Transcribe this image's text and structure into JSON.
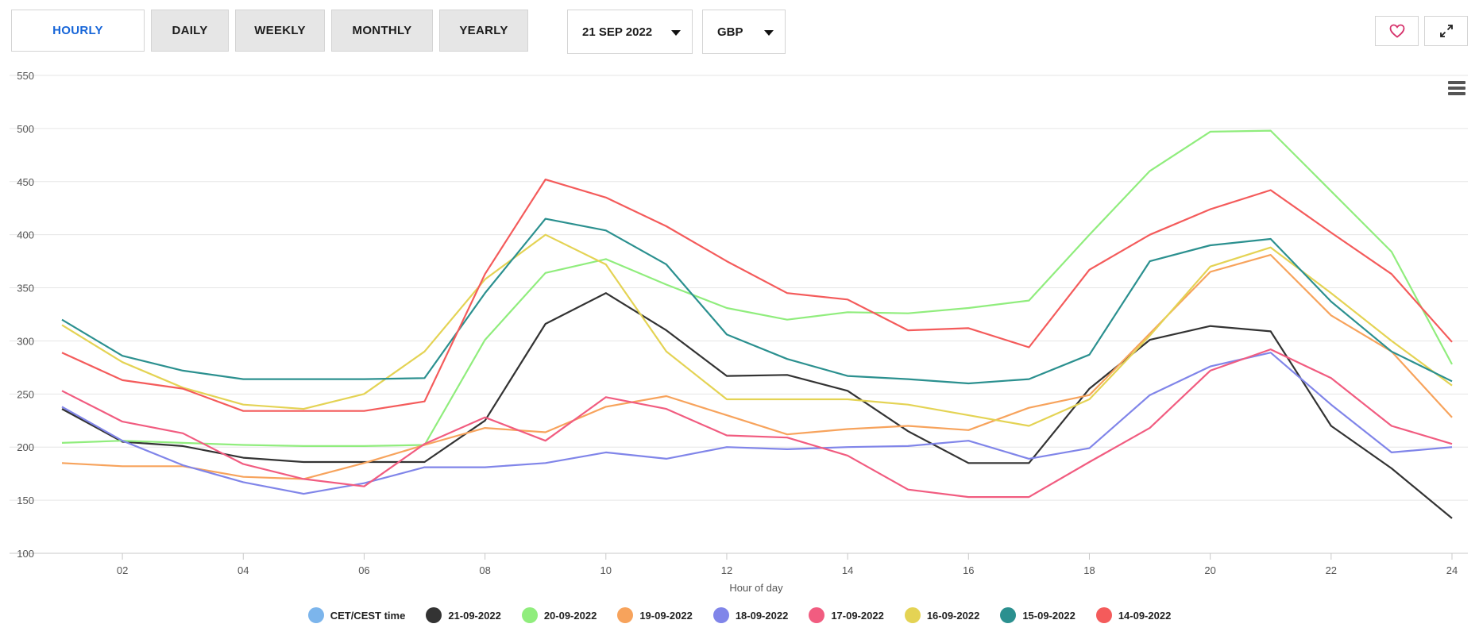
{
  "tabs": [
    {
      "label": "HOURLY",
      "active": true
    },
    {
      "label": "DAILY",
      "active": false
    },
    {
      "label": "WEEKLY",
      "active": false
    },
    {
      "label": "MONTHLY",
      "active": false
    },
    {
      "label": "YEARLY",
      "active": false
    }
  ],
  "date_select": {
    "value": "21 SEP 2022"
  },
  "currency_select": {
    "value": "GBP"
  },
  "icons": {
    "favorite": "heart-icon",
    "expand": "expand-icon",
    "menu": "menu-icon"
  },
  "chart_data": {
    "type": "line",
    "title": "",
    "xlabel": "Hour of day",
    "ylabel": "",
    "xlim": [
      1,
      24
    ],
    "ylim": [
      100,
      550
    ],
    "x_ticks": [
      "02",
      "04",
      "06",
      "08",
      "10",
      "12",
      "14",
      "16",
      "18",
      "20",
      "22",
      "24"
    ],
    "y_ticks": [
      100,
      150,
      200,
      250,
      300,
      350,
      400,
      450,
      500,
      550
    ],
    "grid": true,
    "legend_position": "bottom",
    "x": [
      1,
      2,
      3,
      4,
      5,
      6,
      7,
      8,
      9,
      10,
      11,
      12,
      13,
      14,
      15,
      16,
      17,
      18,
      19,
      20,
      21,
      22,
      23,
      24
    ],
    "legend_extra": {
      "name": "CET/CEST time",
      "color": "#7cb5ec"
    },
    "series": [
      {
        "name": "21-09-2022",
        "color": "#333333",
        "values": [
          236,
          205,
          201,
          190,
          186,
          186,
          186,
          225,
          316,
          345,
          310,
          267,
          268,
          253,
          215,
          185,
          185,
          255,
          301,
          314,
          309,
          220,
          180,
          133
        ]
      },
      {
        "name": "20-09-2022",
        "color": "#90ed7d",
        "values": [
          204,
          206,
          204,
          202,
          201,
          201,
          202,
          301,
          364,
          377,
          353,
          331,
          320,
          327,
          326,
          331,
          338,
          400,
          460,
          497,
          498,
          441,
          384,
          278
        ]
      },
      {
        "name": "19-09-2022",
        "color": "#f7a35c",
        "values": [
          185,
          182,
          182,
          172,
          170,
          185,
          202,
          218,
          214,
          238,
          248,
          230,
          212,
          217,
          220,
          216,
          237,
          249,
          307,
          365,
          381,
          324,
          290,
          228
        ]
      },
      {
        "name": "18-09-2022",
        "color": "#8085e9",
        "values": [
          238,
          206,
          183,
          167,
          156,
          166,
          181,
          181,
          185,
          195,
          189,
          200,
          198,
          200,
          201,
          206,
          189,
          199,
          249,
          276,
          289,
          240,
          195,
          200
        ]
      },
      {
        "name": "17-09-2022",
        "color": "#f15c80",
        "values": [
          253,
          224,
          213,
          184,
          170,
          163,
          203,
          228,
          206,
          247,
          236,
          211,
          209,
          192,
          160,
          153,
          153,
          186,
          218,
          272,
          292,
          265,
          220,
          203
        ]
      },
      {
        "name": "16-09-2022",
        "color": "#e4d354",
        "values": [
          315,
          280,
          256,
          240,
          236,
          250,
          290,
          358,
          400,
          372,
          290,
          245,
          245,
          245,
          240,
          230,
          220,
          245,
          305,
          370,
          388,
          345,
          300,
          258
        ]
      },
      {
        "name": "15-09-2022",
        "color": "#2b908f",
        "values": [
          320,
          286,
          272,
          264,
          264,
          264,
          265,
          345,
          415,
          404,
          372,
          306,
          283,
          267,
          264,
          260,
          264,
          287,
          375,
          390,
          396,
          337,
          290,
          262
        ]
      },
      {
        "name": "14-09-2022",
        "color": "#f45b5b",
        "values": [
          289,
          263,
          255,
          234,
          234,
          234,
          243,
          363,
          452,
          435,
          408,
          375,
          345,
          339,
          310,
          312,
          294,
          367,
          400,
          424,
          442,
          402,
          363,
          299
        ]
      }
    ]
  }
}
